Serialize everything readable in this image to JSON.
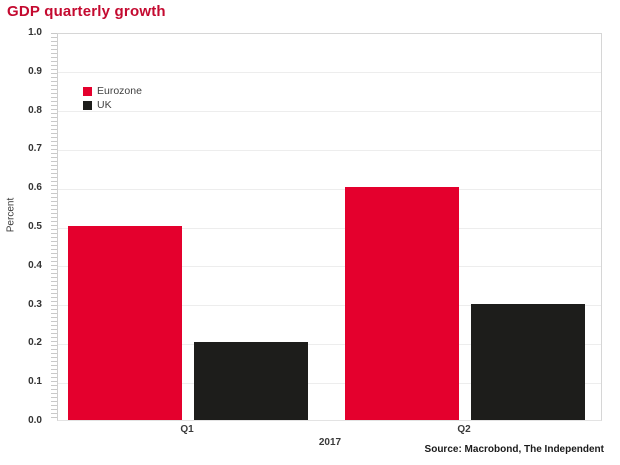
{
  "title": "GDP quarterly growth",
  "source": "Source: Macrobond, The Independent",
  "colors": {
    "title": "#c40a30",
    "eurozone_bar": "#e4002d",
    "uk_bar": "#1d1d1b",
    "axis_text": "#333333",
    "gridline": "#ededed",
    "plot_border": "#d6d6d6"
  },
  "chart_data": {
    "type": "bar",
    "categories": [
      "Q1",
      "Q2"
    ],
    "series": [
      {
        "name": "Eurozone",
        "color": "#e4002d",
        "values": [
          0.5,
          0.6
        ]
      },
      {
        "name": "UK",
        "color": "#1d1d1b",
        "values": [
          0.2,
          0.3
        ]
      }
    ],
    "title": "GDP quarterly growth",
    "xlabel": "2017",
    "ylabel": "Percent",
    "ylim": [
      0.0,
      1.0
    ],
    "yticks": [
      0.0,
      0.1,
      0.2,
      0.3,
      0.4,
      0.5,
      0.6,
      0.7,
      0.8,
      0.9,
      1.0
    ],
    "ytick_labels": [
      "0.0",
      "0.1",
      "0.2",
      "0.3",
      "0.4",
      "0.5",
      "0.6",
      "0.7",
      "0.8",
      "0.9",
      "1.0"
    ],
    "grid": true,
    "legend_position": "upper-left-inside",
    "source": "Source: Macrobond, The Independent"
  }
}
